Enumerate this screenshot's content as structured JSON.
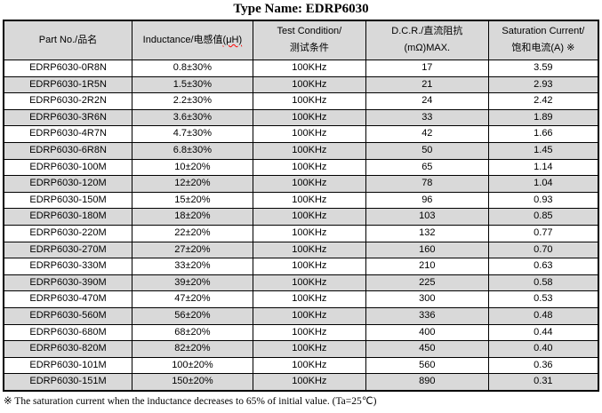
{
  "title": "Type Name: EDRP6030",
  "table": {
    "headers": [
      {
        "line1": "Part No./品名"
      },
      {
        "line1": "Inductance/电感值",
        "line1b": "(μH)"
      },
      {
        "line1": "Test Condition/",
        "line2": "测试条件"
      },
      {
        "line1": "D.C.R./直流阻抗",
        "line2": "(mΩ)MAX."
      },
      {
        "line1": "Saturation Current/",
        "line2": "饱和电流(A)  ※"
      }
    ],
    "col_widths": [
      "21.6%",
      "20.3%",
      "19.0%",
      "20.6%",
      "18.5%"
    ],
    "rows": [
      [
        "EDRP6030-0R8N",
        "0.8±30%",
        "100KHz",
        "17",
        "3.59"
      ],
      [
        "EDRP6030-1R5N",
        "1.5±30%",
        "100KHz",
        "21",
        "2.93"
      ],
      [
        "EDRP6030-2R2N",
        "2.2±30%",
        "100KHz",
        "24",
        "2.42"
      ],
      [
        "EDRP6030-3R6N",
        "3.6±30%",
        "100KHz",
        "33",
        "1.89"
      ],
      [
        "EDRP6030-4R7N",
        "4.7±30%",
        "100KHz",
        "42",
        "1.66"
      ],
      [
        "EDRP6030-6R8N",
        "6.8±30%",
        "100KHz",
        "50",
        "1.45"
      ],
      [
        "EDRP6030-100M",
        "10±20%",
        "100KHz",
        "65",
        "1.14"
      ],
      [
        "EDRP6030-120M",
        "12±20%",
        "100KHz",
        "78",
        "1.04"
      ],
      [
        "EDRP6030-150M",
        "15±20%",
        "100KHz",
        "96",
        "0.93"
      ],
      [
        "EDRP6030-180M",
        "18±20%",
        "100KHz",
        "103",
        "0.85"
      ],
      [
        "EDRP6030-220M",
        "22±20%",
        "100KHz",
        "132",
        "0.77"
      ],
      [
        "EDRP6030-270M",
        "27±20%",
        "100KHz",
        "160",
        "0.70"
      ],
      [
        "EDRP6030-330M",
        "33±20%",
        "100KHz",
        "210",
        "0.63"
      ],
      [
        "EDRP6030-390M",
        "39±20%",
        "100KHz",
        "225",
        "0.58"
      ],
      [
        "EDRP6030-470M",
        "47±20%",
        "100KHz",
        "300",
        "0.53"
      ],
      [
        "EDRP6030-560M",
        "56±20%",
        "100KHz",
        "336",
        "0.48"
      ],
      [
        "EDRP6030-680M",
        "68±20%",
        "100KHz",
        "400",
        "0.44"
      ],
      [
        "EDRP6030-820M",
        "82±20%",
        "100KHz",
        "450",
        "0.40"
      ],
      [
        "EDRP6030-101M",
        "100±20%",
        "100KHz",
        "560",
        "0.36"
      ],
      [
        "EDRP6030-151M",
        "150±20%",
        "100KHz",
        "890",
        "0.31"
      ]
    ]
  },
  "footnote": "※  The saturation current when the inductance decreases to 65% of initial value. (Ta=25℃)",
  "colors": {
    "stripe": "#d9d9d9",
    "header_bg": "#d9d9d9",
    "border": "#000000",
    "spellcheck_squiggle": "#ff0000"
  }
}
